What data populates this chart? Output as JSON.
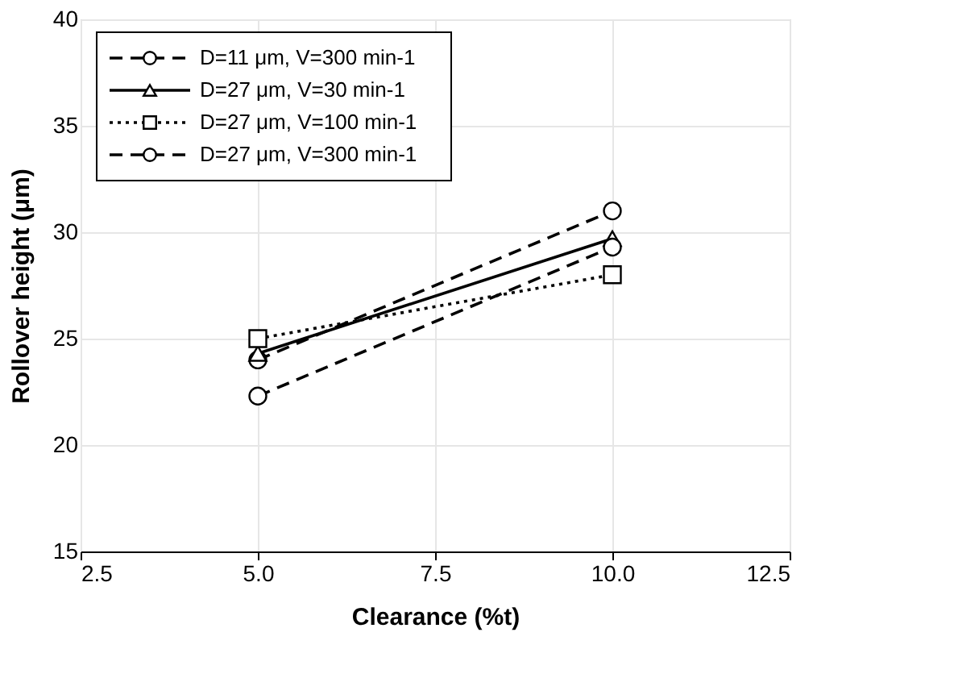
{
  "chart_data": {
    "type": "line",
    "xlabel": "Clearance (%t)",
    "ylabel": "Rollover height (μm)",
    "x": [
      5.0,
      10.0
    ],
    "series": [
      {
        "name": "D=11 μm, V=300 min-1",
        "color": "#000000",
        "values": [
          24.0,
          31.0
        ],
        "marker": "circle",
        "line_style": "dashed"
      },
      {
        "name": "D=27 μm, V=30 min-1",
        "color": "#000000",
        "values": [
          24.3,
          29.7
        ],
        "marker": "triangle",
        "line_style": "solid"
      },
      {
        "name": "D=27 μm, V=100 min-1",
        "color": "#000000",
        "values": [
          25.0,
          28.0
        ],
        "marker": "square",
        "line_style": "dotted"
      },
      {
        "name": "D=27 μm, V=300 min-1",
        "color": "#000000",
        "values": [
          22.3,
          29.3
        ],
        "marker": "circle",
        "line_style": "dashed"
      }
    ],
    "xlim": [
      2.5,
      12.5
    ],
    "xticks": [
      2.5,
      {
        "value": 5,
        "label": "5.0"
      },
      7.5,
      {
        "value": 10,
        "label": "10.0"
      },
      12.5
    ],
    "ylim": [
      15,
      40
    ],
    "yticks": [
      15,
      20,
      25,
      30,
      35,
      40
    ],
    "grid": true,
    "legend": "top left"
  }
}
